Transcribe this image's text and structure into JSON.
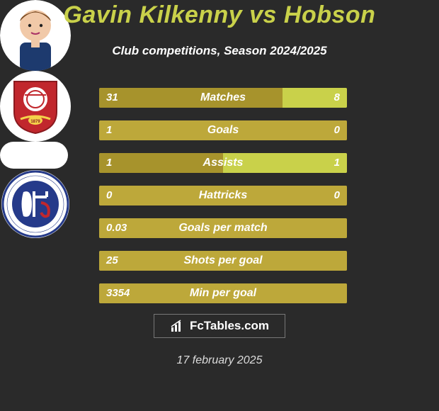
{
  "title": "Gavin Kilkenny vs Hobson",
  "subtitle": "Club competitions, Season 2024/2025",
  "footer_brand": "FcTables.com",
  "date": "17 february 2025",
  "colors": {
    "title": "#c9d14a",
    "bar_left": "#a7932c",
    "bar_right": "#c9d14a",
    "bar_single": "#bda83a",
    "bg": "#2a2a2a"
  },
  "bars": [
    {
      "label": "Matches",
      "left": "31",
      "right": "8",
      "left_pct": 74,
      "right_pct": 26,
      "single": false
    },
    {
      "label": "Goals",
      "left": "1",
      "right": "0",
      "left_pct": 100,
      "right_pct": 0,
      "single": true
    },
    {
      "label": "Assists",
      "left": "1",
      "right": "1",
      "left_pct": 50,
      "right_pct": 50,
      "single": false
    },
    {
      "label": "Hattricks",
      "left": "0",
      "right": "0",
      "left_pct": 100,
      "right_pct": 0,
      "single": true
    },
    {
      "label": "Goals per match",
      "left": "0.03",
      "right": "",
      "left_pct": 100,
      "right_pct": 0,
      "single": true
    },
    {
      "label": "Shots per goal",
      "left": "25",
      "right": "",
      "left_pct": 100,
      "right_pct": 0,
      "single": true
    },
    {
      "label": "Min per goal",
      "left": "3354",
      "right": "",
      "left_pct": 100,
      "right_pct": 0,
      "single": true
    }
  ],
  "player1_name": "Gavin Kilkenny",
  "player2_name": "Hobson",
  "club1_name": "Swindon Town",
  "club2_name": "Chesterfield FC"
}
